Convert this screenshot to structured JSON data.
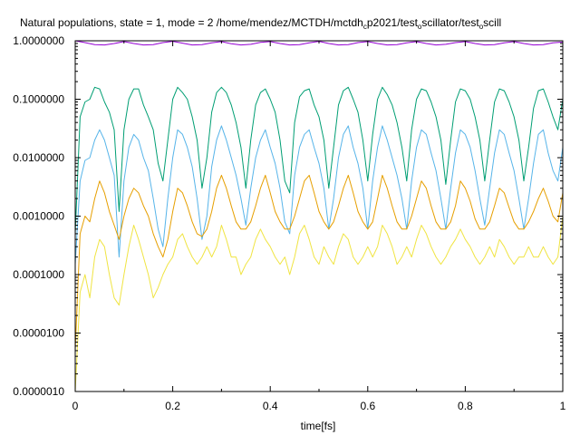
{
  "chart_data": {
    "type": "line",
    "title": "Natural populations, state = 1, mode =  2  /home/mendez/MCTDH/mctdh",
    "title_sub_1": "c",
    "title_mid": "p2021/test",
    "title_sub_2": "o",
    "title_end": "scillator/test",
    "title_sub_3": "o",
    "title_tail": "scill",
    "xlabel": "time[fs]",
    "ylabel": "",
    "xlim": [
      0,
      1
    ],
    "ylim": [
      1e-06,
      1.0
    ],
    "y_scale": "log",
    "x_ticks": [
      0,
      0.2,
      0.4,
      0.6,
      0.8,
      1
    ],
    "x_tick_labels": [
      "0",
      "0.2",
      "0.4",
      "0.6",
      "0.8",
      "1"
    ],
    "y_ticks": [
      1e-06,
      1e-05,
      0.0001,
      0.001,
      0.01,
      0.1,
      1.0
    ],
    "y_tick_labels": [
      "0.0000010",
      "0.0000100",
      "0.0001000",
      "0.0010000",
      "0.0100000",
      "0.1000000",
      "1.0000000"
    ],
    "grid": false,
    "legend": "none",
    "series": [
      {
        "color": "#9400d3",
        "x": [
          0,
          0.02,
          0.04,
          0.06,
          0.08,
          0.1,
          0.12,
          0.14,
          0.16,
          0.18,
          0.2,
          0.22,
          0.24,
          0.26,
          0.28,
          0.3,
          0.32,
          0.34,
          0.36,
          0.38,
          0.4,
          0.42,
          0.44,
          0.46,
          0.48,
          0.5,
          0.52,
          0.54,
          0.56,
          0.58,
          0.6,
          0.62,
          0.64,
          0.66,
          0.68,
          0.7,
          0.72,
          0.74,
          0.76,
          0.78,
          0.8,
          0.82,
          0.84,
          0.86,
          0.88,
          0.9,
          0.92,
          0.94,
          0.96,
          0.98,
          1.0
        ],
        "y": [
          0.999,
          0.93,
          0.86,
          0.85,
          0.9,
          0.97,
          0.9,
          0.85,
          0.86,
          0.93,
          0.98,
          0.91,
          0.85,
          0.86,
          0.92,
          0.97,
          0.89,
          0.85,
          0.87,
          0.94,
          0.97,
          0.9,
          0.85,
          0.86,
          0.92,
          0.98,
          0.9,
          0.85,
          0.86,
          0.93,
          0.97,
          0.9,
          0.85,
          0.86,
          0.92,
          0.97,
          0.9,
          0.85,
          0.87,
          0.93,
          0.97,
          0.9,
          0.85,
          0.86,
          0.92,
          0.97,
          0.9,
          0.85,
          0.86,
          0.92,
          0.95
        ]
      },
      {
        "color": "#009e73",
        "x": [
          0,
          0.01,
          0.02,
          0.03,
          0.04,
          0.05,
          0.06,
          0.07,
          0.08,
          0.09,
          0.1,
          0.11,
          0.12,
          0.13,
          0.14,
          0.15,
          0.16,
          0.17,
          0.18,
          0.19,
          0.2,
          0.21,
          0.22,
          0.23,
          0.24,
          0.25,
          0.26,
          0.27,
          0.28,
          0.29,
          0.3,
          0.31,
          0.32,
          0.33,
          0.34,
          0.35,
          0.36,
          0.37,
          0.38,
          0.39,
          0.4,
          0.41,
          0.42,
          0.43,
          0.44,
          0.45,
          0.46,
          0.47,
          0.48,
          0.49,
          0.5,
          0.51,
          0.52,
          0.53,
          0.54,
          0.55,
          0.56,
          0.57,
          0.58,
          0.59,
          0.6,
          0.61,
          0.62,
          0.63,
          0.64,
          0.65,
          0.66,
          0.67,
          0.68,
          0.69,
          0.7,
          0.71,
          0.72,
          0.73,
          0.74,
          0.75,
          0.76,
          0.77,
          0.78,
          0.79,
          0.8,
          0.81,
          0.82,
          0.83,
          0.84,
          0.85,
          0.86,
          0.87,
          0.88,
          0.89,
          0.9,
          0.91,
          0.92,
          0.93,
          0.94,
          0.95,
          0.96,
          0.97,
          0.98,
          0.99,
          1.0
        ],
        "y": [
          0.0005,
          0.05,
          0.09,
          0.1,
          0.16,
          0.15,
          0.09,
          0.06,
          0.03,
          0.0012,
          0.03,
          0.1,
          0.15,
          0.15,
          0.08,
          0.05,
          0.03,
          0.008,
          0.004,
          0.02,
          0.1,
          0.16,
          0.13,
          0.1,
          0.05,
          0.02,
          0.003,
          0.01,
          0.06,
          0.13,
          0.16,
          0.13,
          0.08,
          0.04,
          0.015,
          0.003,
          0.02,
          0.08,
          0.13,
          0.15,
          0.1,
          0.06,
          0.02,
          0.004,
          0.0025,
          0.04,
          0.11,
          0.14,
          0.15,
          0.08,
          0.05,
          0.02,
          0.003,
          0.015,
          0.08,
          0.14,
          0.16,
          0.1,
          0.06,
          0.02,
          0.004,
          0.025,
          0.1,
          0.16,
          0.12,
          0.08,
          0.04,
          0.015,
          0.004,
          0.03,
          0.1,
          0.15,
          0.14,
          0.09,
          0.05,
          0.02,
          0.0035,
          0.02,
          0.09,
          0.15,
          0.14,
          0.1,
          0.05,
          0.02,
          0.004,
          0.02,
          0.09,
          0.15,
          0.14,
          0.09,
          0.05,
          0.02,
          0.004,
          0.015,
          0.07,
          0.14,
          0.15,
          0.09,
          0.05,
          0.03,
          0.1
        ]
      },
      {
        "color": "#56b4e9",
        "x": [
          0,
          0.01,
          0.02,
          0.03,
          0.04,
          0.05,
          0.06,
          0.07,
          0.08,
          0.09,
          0.1,
          0.11,
          0.12,
          0.13,
          0.14,
          0.15,
          0.16,
          0.17,
          0.18,
          0.19,
          0.2,
          0.21,
          0.22,
          0.23,
          0.24,
          0.25,
          0.26,
          0.27,
          0.28,
          0.29,
          0.3,
          0.31,
          0.32,
          0.33,
          0.34,
          0.35,
          0.36,
          0.37,
          0.38,
          0.39,
          0.4,
          0.41,
          0.42,
          0.43,
          0.44,
          0.45,
          0.46,
          0.47,
          0.48,
          0.49,
          0.5,
          0.51,
          0.52,
          0.53,
          0.54,
          0.55,
          0.56,
          0.57,
          0.58,
          0.59,
          0.6,
          0.61,
          0.62,
          0.63,
          0.64,
          0.65,
          0.66,
          0.67,
          0.68,
          0.69,
          0.7,
          0.71,
          0.72,
          0.73,
          0.74,
          0.75,
          0.76,
          0.77,
          0.78,
          0.79,
          0.8,
          0.81,
          0.82,
          0.83,
          0.84,
          0.85,
          0.86,
          0.87,
          0.88,
          0.89,
          0.9,
          0.91,
          0.92,
          0.93,
          0.94,
          0.95,
          0.96,
          0.97,
          0.98,
          0.99,
          1.0
        ],
        "y": [
          0.00015,
          0.004,
          0.009,
          0.01,
          0.02,
          0.03,
          0.02,
          0.01,
          0.005,
          0.0002,
          0.004,
          0.015,
          0.025,
          0.02,
          0.01,
          0.006,
          0.002,
          0.0006,
          0.0003,
          0.002,
          0.01,
          0.03,
          0.025,
          0.015,
          0.007,
          0.002,
          0.0004,
          0.001,
          0.007,
          0.02,
          0.035,
          0.02,
          0.01,
          0.005,
          0.002,
          0.0007,
          0.003,
          0.01,
          0.02,
          0.03,
          0.015,
          0.008,
          0.003,
          0.0008,
          0.0005,
          0.005,
          0.015,
          0.025,
          0.03,
          0.015,
          0.008,
          0.003,
          0.0006,
          0.002,
          0.01,
          0.025,
          0.035,
          0.015,
          0.008,
          0.003,
          0.0006,
          0.004,
          0.015,
          0.035,
          0.02,
          0.01,
          0.005,
          0.002,
          0.0006,
          0.004,
          0.015,
          0.03,
          0.025,
          0.012,
          0.006,
          0.002,
          0.0006,
          0.003,
          0.012,
          0.03,
          0.025,
          0.015,
          0.006,
          0.002,
          0.0007,
          0.003,
          0.012,
          0.03,
          0.025,
          0.012,
          0.006,
          0.002,
          0.0006,
          0.002,
          0.008,
          0.025,
          0.03,
          0.012,
          0.006,
          0.004,
          0.015
        ]
      },
      {
        "color": "#e69f00",
        "x": [
          0,
          0.01,
          0.02,
          0.03,
          0.04,
          0.05,
          0.06,
          0.07,
          0.08,
          0.09,
          0.1,
          0.11,
          0.12,
          0.13,
          0.14,
          0.15,
          0.16,
          0.17,
          0.18,
          0.19,
          0.2,
          0.21,
          0.22,
          0.23,
          0.24,
          0.25,
          0.26,
          0.27,
          0.28,
          0.29,
          0.3,
          0.31,
          0.32,
          0.33,
          0.34,
          0.35,
          0.36,
          0.37,
          0.38,
          0.39,
          0.4,
          0.41,
          0.42,
          0.43,
          0.44,
          0.45,
          0.46,
          0.47,
          0.48,
          0.49,
          0.5,
          0.51,
          0.52,
          0.53,
          0.54,
          0.55,
          0.56,
          0.57,
          0.58,
          0.59,
          0.6,
          0.61,
          0.62,
          0.63,
          0.64,
          0.65,
          0.66,
          0.67,
          0.68,
          0.69,
          0.7,
          0.71,
          0.72,
          0.73,
          0.74,
          0.75,
          0.76,
          0.77,
          0.78,
          0.79,
          0.8,
          0.81,
          0.82,
          0.83,
          0.84,
          0.85,
          0.86,
          0.87,
          0.88,
          0.89,
          0.9,
          0.91,
          0.92,
          0.93,
          0.94,
          0.95,
          0.96,
          0.97,
          0.98,
          0.99,
          1.0
        ],
        "y": [
          5e-06,
          0.0005,
          0.001,
          0.0008,
          0.002,
          0.004,
          0.0025,
          0.0012,
          0.0007,
          0.0004,
          0.001,
          0.002,
          0.003,
          0.0025,
          0.0015,
          0.001,
          0.0005,
          0.0003,
          0.0002,
          0.0004,
          0.0012,
          0.003,
          0.0025,
          0.0015,
          0.0008,
          0.0005,
          0.00045,
          0.0006,
          0.0012,
          0.003,
          0.005,
          0.003,
          0.0015,
          0.0008,
          0.0006,
          0.0006,
          0.0008,
          0.0015,
          0.003,
          0.005,
          0.0025,
          0.0012,
          0.0008,
          0.0006,
          0.0006,
          0.001,
          0.002,
          0.004,
          0.005,
          0.0025,
          0.0012,
          0.0008,
          0.0006,
          0.0008,
          0.0015,
          0.003,
          0.005,
          0.0025,
          0.0012,
          0.0008,
          0.0006,
          0.0008,
          0.002,
          0.005,
          0.003,
          0.0015,
          0.0008,
          0.0006,
          0.0006,
          0.001,
          0.002,
          0.004,
          0.003,
          0.0015,
          0.0008,
          0.0006,
          0.0006,
          0.0008,
          0.0015,
          0.004,
          0.003,
          0.0018,
          0.0009,
          0.0006,
          0.0006,
          0.0008,
          0.0015,
          0.003,
          0.0025,
          0.0014,
          0.0008,
          0.0006,
          0.0006,
          0.0008,
          0.0012,
          0.002,
          0.003,
          0.0018,
          0.001,
          0.0008,
          0.0025
        ]
      },
      {
        "color": "#f0e442",
        "x": [
          0,
          0.01,
          0.02,
          0.03,
          0.04,
          0.05,
          0.06,
          0.07,
          0.08,
          0.09,
          0.1,
          0.11,
          0.12,
          0.13,
          0.14,
          0.15,
          0.16,
          0.17,
          0.18,
          0.19,
          0.2,
          0.21,
          0.22,
          0.23,
          0.24,
          0.25,
          0.26,
          0.27,
          0.28,
          0.29,
          0.3,
          0.31,
          0.32,
          0.33,
          0.34,
          0.35,
          0.36,
          0.37,
          0.38,
          0.39,
          0.4,
          0.41,
          0.42,
          0.43,
          0.44,
          0.45,
          0.46,
          0.47,
          0.48,
          0.49,
          0.5,
          0.51,
          0.52,
          0.53,
          0.54,
          0.55,
          0.56,
          0.57,
          0.58,
          0.59,
          0.6,
          0.61,
          0.62,
          0.63,
          0.64,
          0.65,
          0.66,
          0.67,
          0.68,
          0.69,
          0.7,
          0.71,
          0.72,
          0.73,
          0.74,
          0.75,
          0.76,
          0.77,
          0.78,
          0.79,
          0.8,
          0.81,
          0.82,
          0.83,
          0.84,
          0.85,
          0.86,
          0.87,
          0.88,
          0.89,
          0.9,
          0.91,
          0.92,
          0.93,
          0.94,
          0.95,
          0.96,
          0.97,
          0.98,
          0.99,
          1.0
        ],
        "y": [
          1e-06,
          5e-05,
          0.0001,
          4e-05,
          0.0002,
          0.0004,
          0.0003,
          0.0001,
          4e-05,
          3e-05,
          0.0001,
          0.0003,
          0.0007,
          0.0004,
          0.0002,
          0.0001,
          4e-05,
          6e-05,
          0.0001,
          0.00015,
          0.0002,
          0.0004,
          0.0005,
          0.0003,
          0.0002,
          0.00015,
          0.0002,
          0.0003,
          0.0002,
          0.0003,
          0.0007,
          0.0004,
          0.0002,
          0.0002,
          0.0001,
          0.00015,
          0.0002,
          0.0004,
          0.0006,
          0.0004,
          0.0003,
          0.0002,
          0.00015,
          0.0002,
          0.0001,
          0.0002,
          0.0005,
          0.0007,
          0.0004,
          0.0002,
          0.00015,
          0.0003,
          0.0002,
          0.00015,
          0.0003,
          0.0005,
          0.0004,
          0.0002,
          0.00015,
          0.0002,
          0.0003,
          0.0002,
          0.0003,
          0.0007,
          0.0005,
          0.0003,
          0.00015,
          0.0002,
          0.0003,
          0.0002,
          0.0004,
          0.0007,
          0.0005,
          0.0003,
          0.0002,
          0.00015,
          0.0002,
          0.0003,
          0.0004,
          0.0006,
          0.0004,
          0.0003,
          0.0002,
          0.00015,
          0.0002,
          0.0003,
          0.0002,
          0.0004,
          0.0003,
          0.0002,
          0.00015,
          0.0002,
          0.0002,
          0.0003,
          0.0002,
          0.0002,
          0.0003,
          0.0002,
          0.00015,
          0.0002,
          0.001
        ]
      }
    ]
  }
}
